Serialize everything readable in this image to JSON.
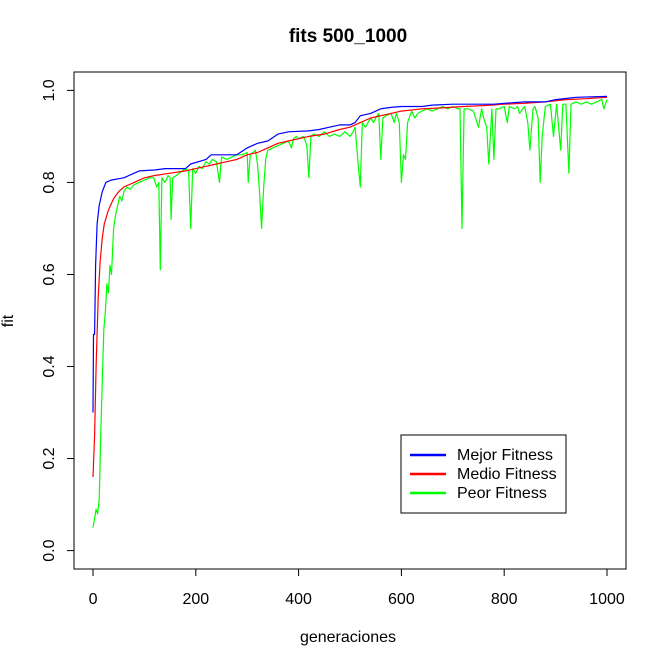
{
  "chart_data": {
    "type": "line",
    "title": "fits 500_1000",
    "xlabel": "generaciones",
    "ylabel": "fit",
    "xlim": [
      -37,
      1037
    ],
    "ylim": [
      -0.04,
      1.04
    ],
    "x_ticks": [
      0,
      200,
      400,
      600,
      800,
      1000
    ],
    "y_ticks": [
      0.0,
      0.2,
      0.4,
      0.6,
      0.8,
      1.0
    ],
    "x_tick_labels": [
      "0",
      "200",
      "400",
      "600",
      "800",
      "1000"
    ],
    "y_tick_labels": [
      "0.0",
      "0.2",
      "0.4",
      "0.6",
      "0.8",
      "1.0"
    ],
    "grid": false,
    "legend_position": "bottom-right",
    "series": [
      {
        "name": "Mejor Fitness",
        "color": "#0000ff",
        "points": [
          [
            0,
            0.3
          ],
          [
            1,
            0.47
          ],
          [
            3,
            0.47
          ],
          [
            5,
            0.62
          ],
          [
            8,
            0.71
          ],
          [
            12,
            0.75
          ],
          [
            18,
            0.78
          ],
          [
            25,
            0.8
          ],
          [
            35,
            0.805
          ],
          [
            60,
            0.81
          ],
          [
            80,
            0.82
          ],
          [
            90,
            0.825
          ],
          [
            120,
            0.827
          ],
          [
            140,
            0.83
          ],
          [
            180,
            0.83
          ],
          [
            190,
            0.84
          ],
          [
            220,
            0.85
          ],
          [
            230,
            0.86
          ],
          [
            280,
            0.86
          ],
          [
            300,
            0.875
          ],
          [
            320,
            0.885
          ],
          [
            340,
            0.89
          ],
          [
            360,
            0.905
          ],
          [
            380,
            0.91
          ],
          [
            420,
            0.912
          ],
          [
            440,
            0.915
          ],
          [
            460,
            0.92
          ],
          [
            480,
            0.925
          ],
          [
            500,
            0.925
          ],
          [
            510,
            0.93
          ],
          [
            520,
            0.945
          ],
          [
            540,
            0.95
          ],
          [
            560,
            0.96
          ],
          [
            580,
            0.963
          ],
          [
            600,
            0.965
          ],
          [
            640,
            0.965
          ],
          [
            660,
            0.968
          ],
          [
            700,
            0.97
          ],
          [
            740,
            0.97
          ],
          [
            780,
            0.97
          ],
          [
            800,
            0.972
          ],
          [
            840,
            0.975
          ],
          [
            880,
            0.975
          ],
          [
            900,
            0.98
          ],
          [
            940,
            0.985
          ],
          [
            1000,
            0.987
          ]
        ]
      },
      {
        "name": "Medio Fitness",
        "color": "#ff0000",
        "points": [
          [
            0,
            0.16
          ],
          [
            3,
            0.25
          ],
          [
            6,
            0.4
          ],
          [
            10,
            0.55
          ],
          [
            14,
            0.63
          ],
          [
            18,
            0.68
          ],
          [
            22,
            0.71
          ],
          [
            30,
            0.74
          ],
          [
            40,
            0.765
          ],
          [
            50,
            0.78
          ],
          [
            60,
            0.79
          ],
          [
            80,
            0.8
          ],
          [
            100,
            0.81
          ],
          [
            120,
            0.815
          ],
          [
            150,
            0.82
          ],
          [
            180,
            0.825
          ],
          [
            200,
            0.83
          ],
          [
            220,
            0.835
          ],
          [
            240,
            0.84
          ],
          [
            260,
            0.845
          ],
          [
            280,
            0.85
          ],
          [
            300,
            0.86
          ],
          [
            320,
            0.865
          ],
          [
            340,
            0.875
          ],
          [
            360,
            0.885
          ],
          [
            380,
            0.89
          ],
          [
            400,
            0.895
          ],
          [
            420,
            0.9
          ],
          [
            450,
            0.905
          ],
          [
            480,
            0.915
          ],
          [
            500,
            0.92
          ],
          [
            520,
            0.93
          ],
          [
            540,
            0.94
          ],
          [
            560,
            0.945
          ],
          [
            580,
            0.95
          ],
          [
            600,
            0.955
          ],
          [
            640,
            0.96
          ],
          [
            680,
            0.962
          ],
          [
            720,
            0.965
          ],
          [
            760,
            0.967
          ],
          [
            800,
            0.97
          ],
          [
            840,
            0.972
          ],
          [
            880,
            0.975
          ],
          [
            920,
            0.98
          ],
          [
            960,
            0.982
          ],
          [
            1000,
            0.985
          ]
        ]
      },
      {
        "name": "Peor Fitness",
        "color": "#00ff00",
        "points": [
          [
            0,
            0.05
          ],
          [
            3,
            0.07
          ],
          [
            6,
            0.09
          ],
          [
            9,
            0.08
          ],
          [
            12,
            0.11
          ],
          [
            15,
            0.25
          ],
          [
            18,
            0.37
          ],
          [
            21,
            0.48
          ],
          [
            24,
            0.52
          ],
          [
            27,
            0.58
          ],
          [
            30,
            0.56
          ],
          [
            33,
            0.62
          ],
          [
            36,
            0.6
          ],
          [
            40,
            0.7
          ],
          [
            44,
            0.73
          ],
          [
            48,
            0.75
          ],
          [
            52,
            0.77
          ],
          [
            56,
            0.76
          ],
          [
            60,
            0.78
          ],
          [
            66,
            0.79
          ],
          [
            72,
            0.785
          ],
          [
            80,
            0.795
          ],
          [
            90,
            0.8
          ],
          [
            100,
            0.805
          ],
          [
            110,
            0.81
          ],
          [
            118,
            0.81
          ],
          [
            124,
            0.79
          ],
          [
            128,
            0.8
          ],
          [
            131,
            0.61
          ],
          [
            134,
            0.81
          ],
          [
            140,
            0.8
          ],
          [
            146,
            0.815
          ],
          [
            150,
            0.81
          ],
          [
            152,
            0.72
          ],
          [
            155,
            0.81
          ],
          [
            162,
            0.815
          ],
          [
            168,
            0.82
          ],
          [
            174,
            0.825
          ],
          [
            180,
            0.83
          ],
          [
            186,
            0.825
          ],
          [
            190,
            0.7
          ],
          [
            194,
            0.83
          ],
          [
            200,
            0.82
          ],
          [
            206,
            0.835
          ],
          [
            212,
            0.83
          ],
          [
            220,
            0.845
          ],
          [
            226,
            0.84
          ],
          [
            232,
            0.85
          ],
          [
            240,
            0.845
          ],
          [
            246,
            0.8
          ],
          [
            250,
            0.855
          ],
          [
            260,
            0.85
          ],
          [
            270,
            0.855
          ],
          [
            280,
            0.86
          ],
          [
            290,
            0.86
          ],
          [
            300,
            0.865
          ],
          [
            302,
            0.8
          ],
          [
            306,
            0.86
          ],
          [
            316,
            0.87
          ],
          [
            320,
            0.84
          ],
          [
            324,
            0.78
          ],
          [
            328,
            0.7
          ],
          [
            332,
            0.79
          ],
          [
            336,
            0.85
          ],
          [
            340,
            0.87
          ],
          [
            350,
            0.875
          ],
          [
            360,
            0.88
          ],
          [
            370,
            0.885
          ],
          [
            380,
            0.89
          ],
          [
            386,
            0.875
          ],
          [
            390,
            0.895
          ],
          [
            396,
            0.9
          ],
          [
            400,
            0.895
          ],
          [
            410,
            0.9
          ],
          [
            416,
            0.88
          ],
          [
            420,
            0.81
          ],
          [
            424,
            0.9
          ],
          [
            430,
            0.905
          ],
          [
            440,
            0.9
          ],
          [
            450,
            0.91
          ],
          [
            460,
            0.9
          ],
          [
            470,
            0.905
          ],
          [
            480,
            0.9
          ],
          [
            490,
            0.91
          ],
          [
            500,
            0.9
          ],
          [
            506,
            0.91
          ],
          [
            510,
            0.92
          ],
          [
            516,
            0.84
          ],
          [
            520,
            0.79
          ],
          [
            524,
            0.93
          ],
          [
            530,
            0.92
          ],
          [
            540,
            0.94
          ],
          [
            546,
            0.93
          ],
          [
            550,
            0.94
          ],
          [
            556,
            0.95
          ],
          [
            560,
            0.85
          ],
          [
            564,
            0.94
          ],
          [
            570,
            0.945
          ],
          [
            580,
            0.95
          ],
          [
            586,
            0.93
          ],
          [
            590,
            0.95
          ],
          [
            596,
            0.93
          ],
          [
            600,
            0.8
          ],
          [
            604,
            0.86
          ],
          [
            608,
            0.85
          ],
          [
            612,
            0.93
          ],
          [
            620,
            0.955
          ],
          [
            626,
            0.94
          ],
          [
            632,
            0.95
          ],
          [
            640,
            0.955
          ],
          [
            650,
            0.96
          ],
          [
            660,
            0.955
          ],
          [
            670,
            0.96
          ],
          [
            680,
            0.965
          ],
          [
            690,
            0.96
          ],
          [
            700,
            0.965
          ],
          [
            710,
            0.96
          ],
          [
            714,
            0.96
          ],
          [
            718,
            0.7
          ],
          [
            722,
            0.96
          ],
          [
            730,
            0.96
          ],
          [
            740,
            0.955
          ],
          [
            750,
            0.92
          ],
          [
            756,
            0.96
          ],
          [
            760,
            0.94
          ],
          [
            766,
            0.92
          ],
          [
            770,
            0.84
          ],
          [
            776,
            0.96
          ],
          [
            780,
            0.85
          ],
          [
            784,
            0.96
          ],
          [
            790,
            0.96
          ],
          [
            800,
            0.965
          ],
          [
            806,
            0.93
          ],
          [
            810,
            0.965
          ],
          [
            820,
            0.96
          ],
          [
            826,
            0.965
          ],
          [
            830,
            0.95
          ],
          [
            836,
            0.96
          ],
          [
            840,
            0.965
          ],
          [
            846,
            0.93
          ],
          [
            850,
            0.87
          ],
          [
            856,
            0.96
          ],
          [
            860,
            0.965
          ],
          [
            866,
            0.94
          ],
          [
            870,
            0.8
          ],
          [
            874,
            0.9
          ],
          [
            880,
            0.965
          ],
          [
            890,
            0.97
          ],
          [
            896,
            0.9
          ],
          [
            902,
            0.97
          ],
          [
            910,
            0.87
          ],
          [
            914,
            0.97
          ],
          [
            920,
            0.97
          ],
          [
            926,
            0.82
          ],
          [
            930,
            0.97
          ],
          [
            940,
            0.975
          ],
          [
            950,
            0.97
          ],
          [
            960,
            0.975
          ],
          [
            970,
            0.97
          ],
          [
            980,
            0.975
          ],
          [
            990,
            0.98
          ],
          [
            994,
            0.96
          ],
          [
            1000,
            0.98
          ]
        ]
      }
    ]
  }
}
